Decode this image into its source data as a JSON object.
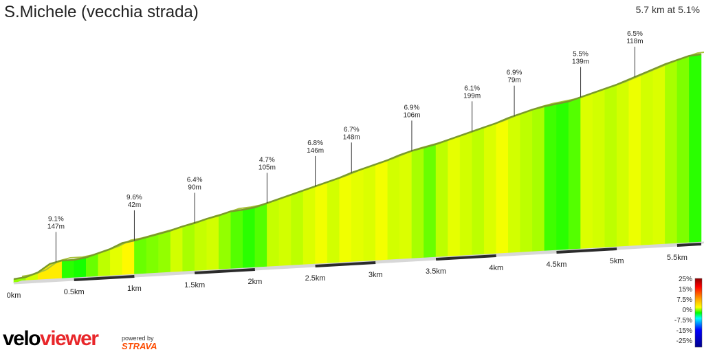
{
  "header": {
    "title": "S.Michele (vecchia strada)",
    "summary": "5.7 km at 5.1%"
  },
  "branding": {
    "logo_part1": "velo",
    "logo_part2": "viewer",
    "powered_by": "powered by",
    "strava": "STRAVA"
  },
  "chart_data": {
    "type": "area",
    "title": "S.Michele (vecchia strada)",
    "subtitle": "5.7 km at 5.1%",
    "x_unit": "km",
    "xlim": [
      0,
      5.7
    ],
    "x_ticks": [
      "0km",
      "0.5km",
      "1km",
      "1.5km",
      "2km",
      "2.5km",
      "3km",
      "3.5km",
      "4km",
      "4.5km",
      "5km",
      "5.5km"
    ],
    "profile_km": [
      0,
      0.1,
      0.2,
      0.3,
      0.4,
      0.5,
      0.6,
      0.7,
      0.8,
      0.9,
      1.0,
      1.1,
      1.2,
      1.3,
      1.4,
      1.5,
      1.6,
      1.7,
      1.8,
      1.9,
      2.0,
      2.1,
      2.2,
      2.3,
      2.4,
      2.5,
      2.6,
      2.7,
      2.8,
      2.9,
      3.0,
      3.1,
      3.2,
      3.3,
      3.4,
      3.5,
      3.6,
      3.7,
      3.8,
      3.9,
      4.0,
      4.1,
      4.2,
      4.3,
      4.4,
      4.5,
      4.6,
      4.7,
      4.8,
      4.9,
      5.0,
      5.1,
      5.2,
      5.3,
      5.4,
      5.5,
      5.6,
      5.7
    ],
    "profile_elev": [
      0,
      1.5,
      6,
      15,
      18,
      18,
      20,
      24,
      28,
      34,
      36,
      39,
      42,
      45,
      49,
      52,
      56,
      59,
      63,
      64,
      66,
      70,
      74,
      78,
      82,
      86,
      90,
      94,
      99,
      103,
      107,
      111,
      116,
      120,
      123,
      126,
      130,
      134,
      138,
      142,
      146,
      151,
      155,
      159,
      162,
      164,
      166,
      170,
      174,
      178,
      182,
      187,
      192,
      197,
      202,
      206,
      210,
      211
    ],
    "segment_gradients": [
      3.5,
      5,
      9.1,
      9.1,
      1,
      0.5,
      2.5,
      4.5,
      6,
      8,
      2.5,
      3,
      3.5,
      5,
      4,
      4.7,
      5,
      3.5,
      2,
      1,
      2,
      4.7,
      5,
      4.5,
      5.5,
      6.8,
      5,
      6.7,
      6,
      5.5,
      6.9,
      5,
      5.5,
      4,
      2.5,
      4.5,
      6.1,
      5,
      4.5,
      5.5,
      6.9,
      5,
      4.5,
      4,
      1.5,
      1,
      2,
      5.5,
      5,
      4.5,
      5,
      6.5,
      5,
      5.5,
      4,
      3,
      1
    ],
    "annotations": [
      {
        "km": 0.35,
        "gradient": "9.1%",
        "length": "147m"
      },
      {
        "km": 1.0,
        "gradient": "9.6%",
        "length": "42m"
      },
      {
        "km": 1.5,
        "gradient": "6.4%",
        "length": "90m"
      },
      {
        "km": 2.1,
        "gradient": "4.7%",
        "length": "105m"
      },
      {
        "km": 2.5,
        "gradient": "6.8%",
        "length": "146m"
      },
      {
        "km": 2.8,
        "gradient": "6.7%",
        "length": "148m"
      },
      {
        "km": 3.3,
        "gradient": "6.9%",
        "length": "106m"
      },
      {
        "km": 3.8,
        "gradient": "6.1%",
        "length": "199m"
      },
      {
        "km": 4.15,
        "gradient": "6.9%",
        "length": "79m"
      },
      {
        "km": 4.7,
        "gradient": "5.5%",
        "length": "139m"
      },
      {
        "km": 5.15,
        "gradient": "6.5%",
        "length": "118m"
      }
    ],
    "legend": {
      "placement": "bottom-right",
      "labels": [
        "25%",
        "15%",
        "7.5%",
        "0%",
        "-7.5%",
        "-15%",
        "-25%"
      ]
    },
    "colors": {
      "line": "#7a9a2a",
      "base": "#d7d7d7",
      "base_dark": "#2b2b2b"
    }
  }
}
